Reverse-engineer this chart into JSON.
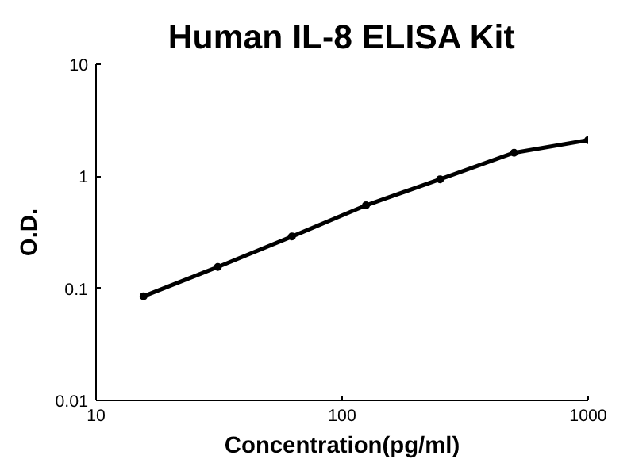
{
  "chart_data": {
    "type": "line",
    "title": "Human IL-8 ELISA Kit",
    "xlabel": "Concentration(pg/ml)",
    "ylabel": "O.D.",
    "x": [
      15.6,
      31.25,
      62.5,
      125,
      250,
      500,
      1000
    ],
    "series": [
      {
        "color": "#000000",
        "values": [
          0.085,
          0.155,
          0.29,
          0.55,
          0.94,
          1.62,
          2.1
        ]
      }
    ],
    "log": "xy",
    "xlim": [
      10,
      1000
    ],
    "ylim": [
      0.01,
      10
    ],
    "xticks": [
      10,
      100,
      1000
    ],
    "yticks": [
      0.01,
      0.1,
      1,
      10
    ],
    "marker": "circle",
    "line_style": "solid",
    "grid": false
  }
}
